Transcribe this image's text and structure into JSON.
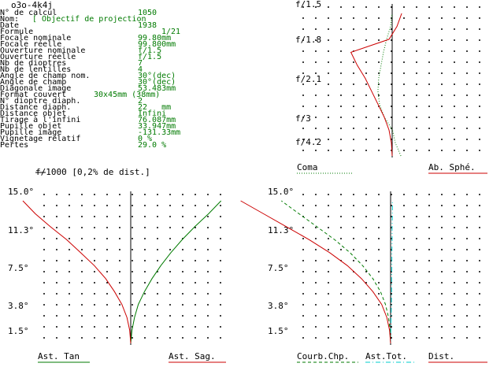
{
  "title": "o3o-4k4j",
  "data_table": [
    {
      "label": "N° de calcul",
      "value": "1050"
    },
    {
      "label": "Nom:",
      "value": "[ Objectif de projection"
    },
    {
      "label": "Date",
      "value": "1938"
    },
    {
      "label": "Formule",
      "value": "1/21"
    },
    {
      "label": "Focale nominale",
      "value": "99.80mm"
    },
    {
      "label": "Focale réelle",
      "value": "99.800mm"
    },
    {
      "label": "Ouverture nominale",
      "value": "f/1.5"
    },
    {
      "label": "Ouverture réelle",
      "value": "f/1.5"
    },
    {
      "label": "Nb de dioptres",
      "value": "7"
    },
    {
      "label": "Nb de lentilles",
      "value": "4"
    },
    {
      "label": "Angle de champ nom.",
      "value": "30°(dec)"
    },
    {
      "label": "Angle de champ",
      "value": "30°(dec)"
    },
    {
      "label": "Diagonale image",
      "value": "53.483mm"
    },
    {
      "label": "Format couvert",
      "value": "30x45mm (38mm)"
    },
    {
      "label": "N° dioptre diaph.",
      "value": "2"
    },
    {
      "label": "Distance diaph.",
      "value": "22   mm"
    },
    {
      "label": "Distance objet",
      "value": "Infini"
    },
    {
      "label": "Tirage à l'infini",
      "value": "76.087mm"
    },
    {
      "label": "Pupille objet",
      "value": "33.947mm"
    },
    {
      "label": "Pupille image",
      "value": "-131.33mm"
    },
    {
      "label": "Vignetage relatif",
      "value": "0 %"
    },
    {
      "label": "Pertes",
      "value": "29.0 %"
    }
  ],
  "footnote": "f/1000 [0,2% de dist.]",
  "colors": {
    "red": "#cc0000",
    "green": "#007a00",
    "cyan": "#00cccc",
    "text_green": "#007a00"
  },
  "chart_data": [
    {
      "type": "line",
      "name": "spherical-aberration",
      "y_ticks": [
        "f/1.5",
        "f/1.8",
        "f/2.1",
        "f/3",
        "f/4.2"
      ],
      "legend": [
        {
          "label": "Coma",
          "color": "#007a00",
          "style": "dotted"
        },
        {
          "label": "Ab. Sphé.",
          "color": "#cc0000",
          "style": "solid"
        }
      ],
      "series": [
        {
          "label": "Coma",
          "values": [
            0.55,
            0.2,
            0.02,
            -0.5,
            -0.8,
            -0.9,
            -0.85,
            -0.7,
            -0.55,
            -0.35,
            -0.1,
            0.0
          ]
        },
        {
          "label": "Ab. Sphé.",
          "values": [
            0.0,
            -0.05,
            -0.2,
            -0.5,
            -0.9,
            -1.3,
            -1.7,
            -2.2,
            -2.6,
            -0.2,
            0.3,
            0.6
          ]
        }
      ]
    },
    {
      "type": "line",
      "name": "astigmatism",
      "y_ticks": [
        "15.0°",
        "11.3°",
        "7.5°",
        "3.8°",
        "1.5°"
      ],
      "legend": [
        {
          "label": "Ast. Tan",
          "color": "#007a00",
          "style": "solid"
        },
        {
          "label": "Ast. Sag.",
          "color": "#cc0000",
          "style": "solid"
        }
      ],
      "series": [
        {
          "label": "Ast. Tan",
          "values": [
            0,
            0.05,
            0.15,
            0.3,
            0.55,
            0.85,
            1.2,
            1.6,
            2.05,
            2.55,
            3.1,
            3.6
          ]
        },
        {
          "label": "Ast. Sag.",
          "values": [
            0,
            -0.04,
            -0.15,
            -0.35,
            -0.65,
            -1.0,
            -1.45,
            -2.0,
            -2.55,
            -3.2,
            -3.8,
            -4.3
          ]
        }
      ]
    },
    {
      "type": "line",
      "name": "field-curvature-distortion",
      "y_ticks": [
        "15.0°",
        "11.3°",
        "7.5°",
        "3.8°",
        "1.5°"
      ],
      "legend": [
        {
          "label": "Courb.Chp.",
          "color": "#007a00",
          "style": "dashed"
        },
        {
          "label": "Ast.Tot.",
          "color": "#00cccc",
          "style": "dashdot"
        },
        {
          "label": "Dist.",
          "color": "#cc0000",
          "style": "solid"
        }
      ],
      "series": [
        {
          "label": "Courb.Chp.",
          "values": [
            0,
            -0.02,
            -0.08,
            -0.2,
            -0.4,
            -0.7,
            -1.1,
            -1.6,
            -2.2,
            -2.9,
            -3.6,
            -4.3
          ]
        },
        {
          "label": "Ast.Tot.",
          "values": [
            0,
            0.01,
            0.02,
            0.03,
            0.04,
            0.04,
            0.05,
            0.05,
            0.06,
            0.06,
            0.07,
            0.07
          ]
        },
        {
          "label": "Dist.",
          "values": [
            0,
            -0.04,
            -0.15,
            -0.35,
            -0.7,
            -1.15,
            -1.7,
            -2.4,
            -3.2,
            -4.1,
            -5.0,
            -5.9
          ]
        }
      ]
    }
  ]
}
